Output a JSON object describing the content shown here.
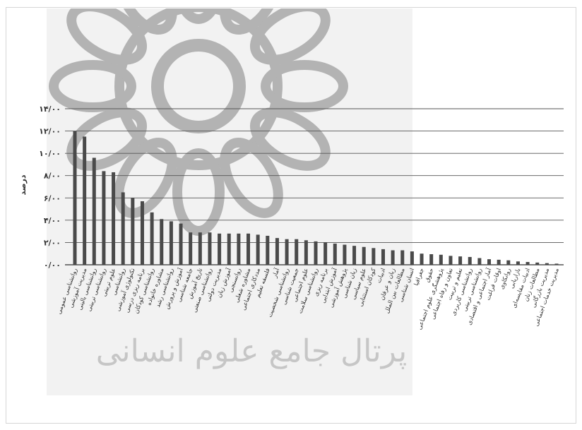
{
  "chart_data": {
    "type": "bar",
    "ylabel": "درصد",
    "ylim": [
      0,
      14
    ],
    "yticks": [
      {
        "v": 0,
        "label": "۰/۰۰"
      },
      {
        "v": 2,
        "label": "۲/۰۰"
      },
      {
        "v": 4,
        "label": "۴/۰۰"
      },
      {
        "v": 6,
        "label": "۶/۰۰"
      },
      {
        "v": 8,
        "label": "۸/۰۰"
      },
      {
        "v": 10,
        "label": "۱۰/۰۰"
      },
      {
        "v": 12,
        "label": "۱۲/۰۰"
      },
      {
        "v": 14,
        "label": "۱۴/۰۰"
      }
    ],
    "grid": true,
    "legend": "none",
    "bar_color": "#4a4a4a",
    "categories": [
      "روانشناسی عمومی",
      "مدیریت آموزشی",
      "روانشناسی بالینی",
      "روانشناسی تربیتی",
      "علوم تربیتی",
      "روانشناسی",
      "تکنولوژی آموزشی",
      "برنامه ریزی درسی",
      "روانشناسی کودکان",
      "مشاوره خانواده",
      "روانشناسی رشد",
      "آموزش و پرورش",
      "جامعه شناسی",
      "تاریخ آموزش",
      "روانشناسی صنعتی",
      "مدیریت دولتی",
      "آموزش زبان",
      "روانسنجی",
      "مشاوره شغلی",
      "مددکاری اجتماعی",
      "فلسفه تعلیم",
      "آمار",
      "روانشناسی شخصیت",
      "جمعیت شناسی",
      "علوم اجتماعی",
      "روانشناسی سلامت",
      "برنامه ریزی",
      "آموزش ابتدایی",
      "پژوهش آموزشی",
      "زبان شناسی",
      "علوم سیاسی",
      "کودکان استثنایی",
      "ادبیات",
      "زبان و عرفان",
      "مطالعات بین الملل",
      "انسان شناسی",
      "جغرافیا",
      "حقوق",
      "پژوهشگری علوم اجتماعی",
      "تعاون و رفاه اجتماعی",
      "تعلیم و تربیت",
      "روانشناسی کاربردی",
      "روانشناسی تربیتی",
      "آمار اجتماعی و اقتصادی",
      "اوقات فراغت",
      "روانکاوی",
      "بازاریابی",
      "ادبیات مقایسه‌ای",
      "مطالعات زنان",
      "مدیریت بازرگانی",
      "مدیریت خدمات اجتماعی"
    ],
    "values": [
      12.0,
      11.5,
      9.6,
      8.4,
      8.3,
      6.5,
      6.0,
      5.7,
      4.7,
      4.1,
      3.9,
      3.7,
      2.9,
      2.9,
      2.9,
      2.8,
      2.8,
      2.8,
      2.8,
      2.7,
      2.6,
      2.4,
      2.3,
      2.3,
      2.2,
      2.1,
      2.0,
      1.9,
      1.8,
      1.7,
      1.6,
      1.5,
      1.4,
      1.3,
      1.3,
      1.2,
      1.0,
      0.95,
      0.9,
      0.8,
      0.75,
      0.7,
      0.6,
      0.5,
      0.45,
      0.4,
      0.3,
      0.25,
      0.2,
      0.15,
      0.1
    ]
  },
  "watermark": {
    "text": "پرتال جامع علوم انسانی"
  }
}
